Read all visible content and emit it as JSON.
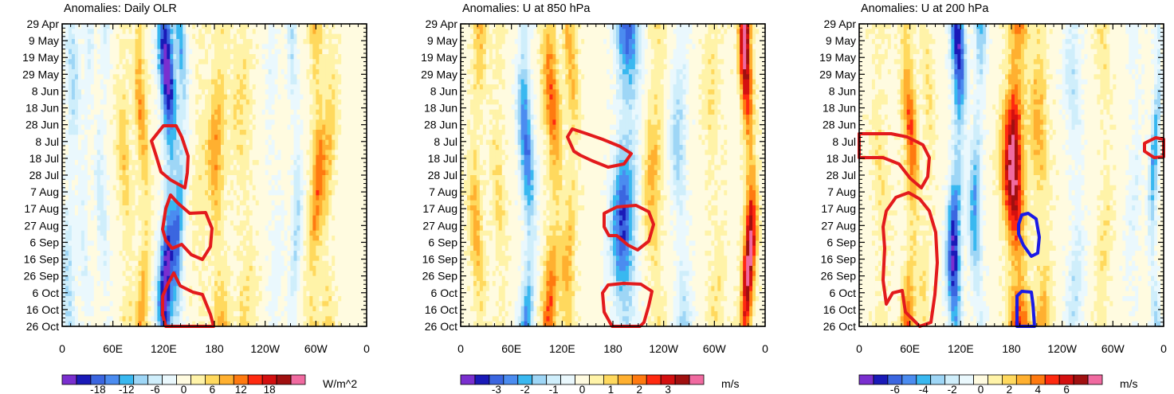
{
  "palette": {
    "neg": [
      "#7a2fcf",
      "#1a1ab8",
      "#3b66e0",
      "#4b8cf0",
      "#39b8f0",
      "#9ed6f6",
      "#cfeefb",
      "#eaf8fd"
    ],
    "neutral": "#ffffff",
    "pos": [
      "#fffbe0",
      "#fff3a8",
      "#ffd95e",
      "#ffb030",
      "#ff7a10",
      "#ff2a10",
      "#d41010",
      "#a01010",
      "#f06aa0"
    ],
    "contour_red": "#e31a1c",
    "contour_blue": "#1a1ae6"
  },
  "chart_data": [
    {
      "type": "heatmap",
      "title": "Anomalies: Daily OLR",
      "units": "W/m^2",
      "x_ticks": [
        "0",
        "60E",
        "120E",
        "180",
        "120W",
        "60W",
        "0"
      ],
      "y_ticks": [
        "29 Apr",
        "9 May",
        "19 May",
        "29 May",
        "8 Jun",
        "18 Jun",
        "28 Jun",
        "8 Jul",
        "18 Jul",
        "28 Jul",
        "7 Aug",
        "17 Aug",
        "27 Aug",
        "6 Sep",
        "16 Sep",
        "26 Sep",
        "6 Oct",
        "16 Oct",
        "26 Oct"
      ],
      "colorbar_labels": [
        "-18",
        "-12",
        "-6",
        "0",
        "6",
        "12",
        "18"
      ],
      "xlim_deg_east": [
        0,
        360
      ],
      "date_range": [
        "29 Apr",
        "26 Oct"
      ],
      "bands": [
        {
          "lon": 10,
          "width": 8,
          "amp": -5
        },
        {
          "lon": 28,
          "width": 6,
          "amp": -3
        },
        {
          "lon": 48,
          "width": 6,
          "amp": -4
        },
        {
          "lon": 75,
          "width": 8,
          "amp": 4
        },
        {
          "lon": 95,
          "width": 7,
          "amp": 6
        },
        {
          "lon": 125,
          "width": 9,
          "amp": -15
        },
        {
          "lon": 140,
          "width": 6,
          "amp": -8
        },
        {
          "lon": 165,
          "width": 10,
          "amp": 2
        },
        {
          "lon": 185,
          "width": 10,
          "amp": 6
        },
        {
          "lon": 215,
          "width": 12,
          "amp": 3
        },
        {
          "lon": 250,
          "width": 8,
          "amp": -2
        },
        {
          "lon": 275,
          "width": 6,
          "amp": -5
        },
        {
          "lon": 300,
          "width": 8,
          "amp": 7
        },
        {
          "lon": 315,
          "width": 8,
          "amp": 4
        }
      ],
      "contours": [
        {
          "color": "red",
          "points": [
            [
              112,
              177
            ],
            [
              127,
              158
            ],
            [
              143,
              158
            ],
            [
              150,
              172
            ],
            [
              158,
              196
            ],
            [
              157,
              217
            ],
            [
              154,
              236
            ],
            [
              136,
              226
            ],
            [
              124,
              216
            ],
            [
              118,
              196
            ]
          ]
        },
        {
          "color": "red",
          "points": [
            [
              126,
              288
            ],
            [
              130,
              262
            ],
            [
              136,
              245
            ],
            [
              145,
              255
            ],
            [
              160,
              268
            ],
            [
              180,
              267
            ],
            [
              188,
              287
            ],
            [
              186,
              310
            ],
            [
              176,
              326
            ],
            [
              162,
              320
            ],
            [
              150,
              307
            ],
            [
              138,
              312
            ],
            [
              130,
              302
            ]
          ]
        },
        {
          "color": "red",
          "points": [
            [
              126,
              372
            ],
            [
              133,
              356
            ],
            [
              140,
              343
            ],
            [
              148,
              359
            ],
            [
              164,
              367
            ],
            [
              176,
              370
            ],
            [
              186,
              395
            ],
            [
              190,
              410
            ],
            [
              130,
              410
            ],
            [
              126,
              395
            ]
          ]
        }
      ]
    },
    {
      "type": "heatmap",
      "title": "Anomalies: U at 850 hPa",
      "units": "m/s",
      "x_ticks": [
        "0",
        "60E",
        "120E",
        "180",
        "120W",
        "60W",
        "0"
      ],
      "y_ticks": [
        "29 Apr",
        "9 May",
        "19 May",
        "29 May",
        "8 Jun",
        "18 Jun",
        "28 Jun",
        "8 Jul",
        "18 Jul",
        "28 Jul",
        "7 Aug",
        "17 Aug",
        "27 Aug",
        "6 Sep",
        "16 Sep",
        "26 Sep",
        "6 Oct",
        "16 Oct",
        "26 Oct"
      ],
      "colorbar_labels": [
        "-3",
        "-2",
        "-1",
        "0",
        "1",
        "2",
        "3"
      ],
      "xlim_deg_east": [
        0,
        360
      ],
      "date_range": [
        "29 Apr",
        "26 Oct"
      ],
      "bands": [
        {
          "lon": 20,
          "width": 8,
          "amp": 1
        },
        {
          "lon": 45,
          "width": 8,
          "amp": 0.6
        },
        {
          "lon": 78,
          "width": 8,
          "amp": -2
        },
        {
          "lon": 108,
          "width": 9,
          "amp": 1.5
        },
        {
          "lon": 130,
          "width": 8,
          "amp": 1
        },
        {
          "lon": 195,
          "width": 14,
          "amp": -2.2
        },
        {
          "lon": 230,
          "width": 10,
          "amp": 1
        },
        {
          "lon": 260,
          "width": 10,
          "amp": -1
        },
        {
          "lon": 300,
          "width": 10,
          "amp": 0.5
        },
        {
          "lon": 340,
          "width": 7,
          "amp": 2.8
        }
      ],
      "contours": [
        {
          "color": "red",
          "points": [
            [
              134,
              172
            ],
            [
              140,
              162
            ],
            [
              158,
              168
            ],
            [
              178,
              175
            ],
            [
              200,
              184
            ],
            [
              214,
              193
            ],
            [
              205,
              206
            ],
            [
              185,
              210
            ],
            [
              165,
              202
            ],
            [
              150,
              195
            ],
            [
              142,
              190
            ]
          ]
        },
        {
          "color": "red",
          "points": [
            [
              180,
              285
            ],
            [
              180,
              268
            ],
            [
              196,
              260
            ],
            [
              220,
              258
            ],
            [
              236,
              266
            ],
            [
              242,
              282
            ],
            [
              236,
              303
            ],
            [
              222,
              314
            ],
            [
              210,
              308
            ],
            [
              196,
              296
            ],
            [
              186,
              296
            ]
          ]
        },
        {
          "color": "red",
          "points": [
            [
              178,
              368
            ],
            [
              185,
              358
            ],
            [
              204,
              356
            ],
            [
              226,
              357
            ],
            [
              240,
              366
            ],
            [
              236,
              384
            ],
            [
              230,
              405
            ],
            [
              225,
              410
            ],
            [
              190,
              410
            ],
            [
              180,
              392
            ]
          ]
        }
      ]
    },
    {
      "type": "heatmap",
      "title": "Anomalies: U at 200 hPa",
      "units": "m/s",
      "x_ticks": [
        "0",
        "60E",
        "120E",
        "180",
        "120W",
        "60W",
        "0"
      ],
      "y_ticks": [
        "29 Apr",
        "9 May",
        "19 May",
        "29 May",
        "8 Jun",
        "18 Jun",
        "28 Jun",
        "8 Jul",
        "18 Jul",
        "28 Jul",
        "7 Aug",
        "17 Aug",
        "27 Aug",
        "6 Sep",
        "16 Sep",
        "26 Sep",
        "6 Oct",
        "16 Oct",
        "26 Oct"
      ],
      "colorbar_labels": [
        "-6",
        "-4",
        "-2",
        "0",
        "2",
        "4",
        "6"
      ],
      "xlim_deg_east": [
        0,
        360
      ],
      "date_range": [
        "29 Apr",
        "26 Oct"
      ],
      "bands": [
        {
          "lon": 25,
          "width": 10,
          "amp": 1
        },
        {
          "lon": 60,
          "width": 8,
          "amp": 3
        },
        {
          "lon": 80,
          "width": 6,
          "amp": 1
        },
        {
          "lon": 115,
          "width": 8,
          "amp": -5
        },
        {
          "lon": 140,
          "width": 7,
          "amp": -3
        },
        {
          "lon": 185,
          "width": 12,
          "amp": 5.5
        },
        {
          "lon": 215,
          "width": 10,
          "amp": 2
        },
        {
          "lon": 255,
          "width": 10,
          "amp": -1.5
        },
        {
          "lon": 290,
          "width": 8,
          "amp": 1
        },
        {
          "lon": 325,
          "width": 8,
          "amp": -1
        },
        {
          "lon": 350,
          "width": 5,
          "amp": -3
        }
      ],
      "contours": [
        {
          "color": "red",
          "points": [
            [
              0,
              168
            ],
            [
              40,
              168
            ],
            [
              60,
              172
            ],
            [
              80,
              182
            ],
            [
              88,
              198
            ],
            [
              86,
              222
            ],
            [
              78,
              236
            ],
            [
              64,
              224
            ],
            [
              50,
              206
            ],
            [
              30,
              198
            ],
            [
              0,
              198
            ]
          ]
        },
        {
          "color": "red",
          "points": [
            [
              34,
              265
            ],
            [
              46,
              248
            ],
            [
              62,
              242
            ],
            [
              76,
              250
            ],
            [
              88,
              265
            ],
            [
              96,
              292
            ],
            [
              98,
              330
            ],
            [
              95,
              370
            ],
            [
              90,
              405
            ],
            [
              76,
              410
            ],
            [
              58,
              392
            ],
            [
              54,
              365
            ],
            [
              42,
              368
            ],
            [
              34,
              382
            ],
            [
              30,
              352
            ],
            [
              32,
              312
            ],
            [
              30,
              285
            ]
          ]
        },
        {
          "color": "red",
          "points": [
            [
              358,
              180
            ],
            [
              372,
              173
            ],
            [
              382,
              175
            ],
            [
              382,
              197
            ],
            [
              370,
              198
            ],
            [
              358,
              190
            ]
          ]
        },
        {
          "color": "blue",
          "points": [
            [
              200,
              282
            ],
            [
              204,
              270
            ],
            [
              212,
              268
            ],
            [
              222,
              275
            ],
            [
              226,
              298
            ],
            [
              224,
              318
            ],
            [
              216,
              322
            ],
            [
              206,
              308
            ],
            [
              200,
              294
            ]
          ]
        },
        {
          "color": "blue",
          "points": [
            [
              198,
              385
            ],
            [
              198,
              372
            ],
            [
              204,
              366
            ],
            [
              216,
              367
            ],
            [
              218,
              382
            ],
            [
              220,
              410
            ],
            [
              198,
              410
            ]
          ]
        }
      ]
    }
  ]
}
